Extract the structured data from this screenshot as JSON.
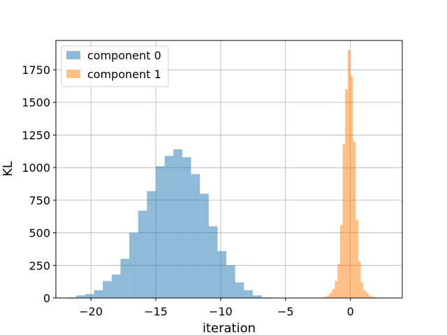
{
  "chart_data": {
    "type": "bar",
    "title": "",
    "xlabel": "iteration",
    "ylabel": "KL",
    "xlim": [
      -22.7,
      4.0
    ],
    "ylim": [
      0,
      1975
    ],
    "xticks": [
      -20,
      -15,
      -10,
      -5,
      0
    ],
    "xtick_labels": [
      "−20",
      "−15",
      "−10",
      "−5",
      "0"
    ],
    "yticks": [
      0,
      250,
      500,
      750,
      1000,
      1250,
      1500,
      1750
    ],
    "ytick_labels": [
      "0",
      "250",
      "500",
      "750",
      "1000",
      "1250",
      "1500",
      "1750"
    ],
    "grid": true,
    "legend_position": "top-left",
    "series": [
      {
        "name": "component 0",
        "color": "#1f77b4",
        "alpha": 0.5,
        "bin_width": 0.68,
        "bin_starts": [
          -21.8,
          -21.12,
          -20.44,
          -19.76,
          -19.08,
          -18.4,
          -17.72,
          -17.04,
          -16.36,
          -15.68,
          -15.0,
          -14.32,
          -13.64,
          -12.96,
          -12.28,
          -11.6,
          -10.92,
          -10.24,
          -9.56,
          -8.88,
          -8.2,
          -7.52,
          -6.84
        ],
        "values": [
          5,
          20,
          30,
          60,
          130,
          180,
          300,
          500,
          670,
          820,
          1010,
          1090,
          1140,
          1080,
          950,
          800,
          550,
          360,
          250,
          120,
          60,
          20,
          5
        ]
      },
      {
        "name": "component 1",
        "color": "#ff7f0e",
        "alpha": 0.5,
        "bin_width": 0.2,
        "bin_starts": [
          -2.2,
          -2.0,
          -1.8,
          -1.6,
          -1.4,
          -1.2,
          -1.0,
          -0.8,
          -0.6,
          -0.4,
          -0.2,
          0.0,
          0.2,
          0.4,
          0.6,
          0.8,
          1.0,
          1.2,
          1.4,
          1.6,
          1.8,
          2.0,
          2.2,
          2.4,
          2.6
        ],
        "values": [
          5,
          10,
          20,
          40,
          70,
          130,
          260,
          560,
          1180,
          1600,
          1900,
          1700,
          1200,
          600,
          280,
          120,
          60,
          40,
          20,
          10,
          8,
          5,
          5,
          3,
          2
        ]
      }
    ]
  }
}
